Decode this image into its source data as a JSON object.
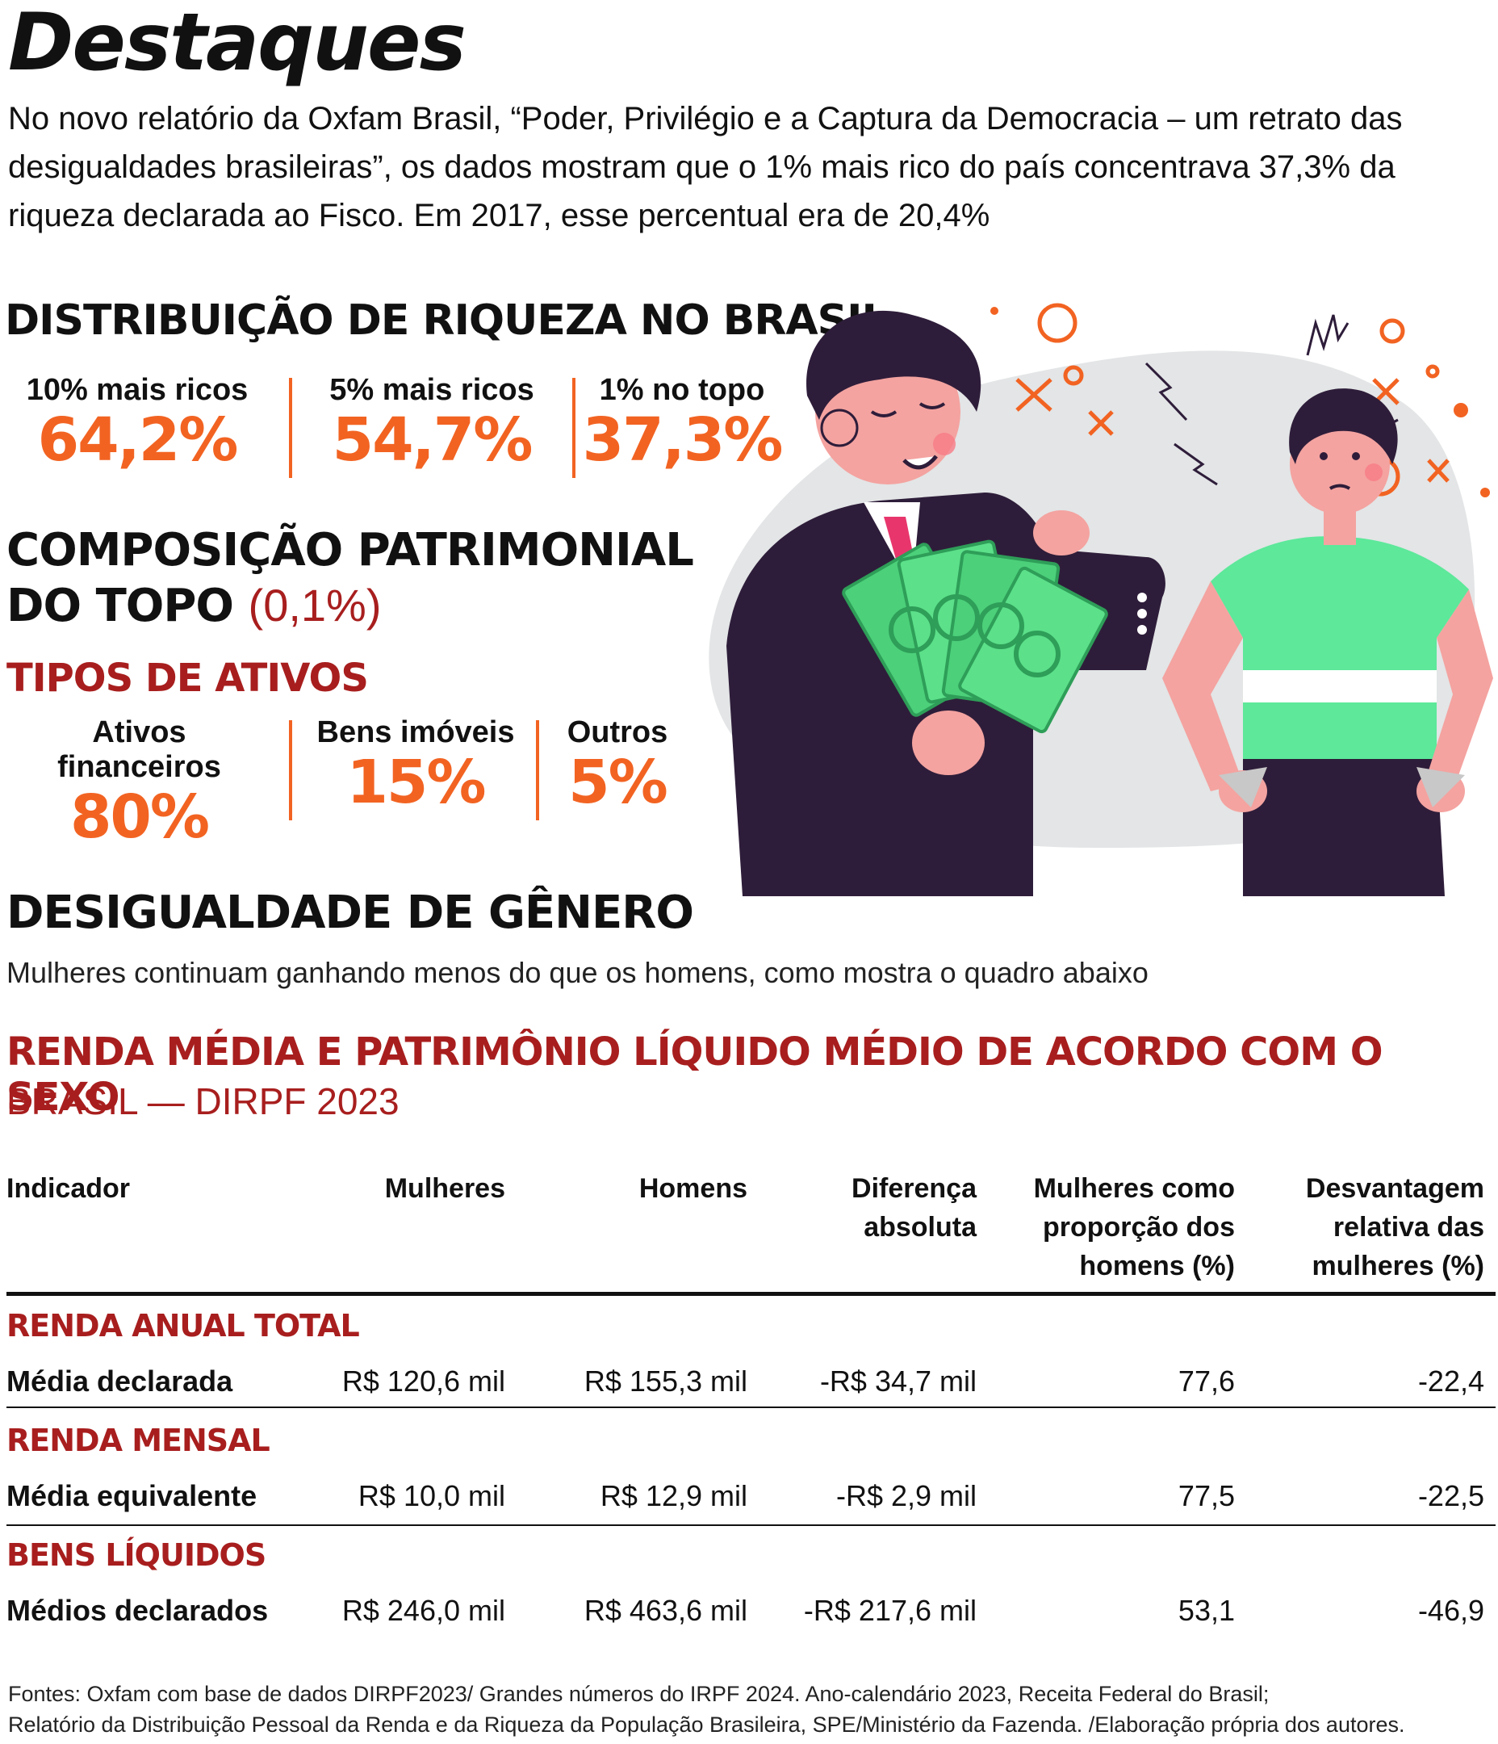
{
  "title": "Destaques",
  "intro": "No novo relatório da Oxfam Brasil, “Poder, Privilégio e a Captura da Democracia – um retrato das desigualdades brasileiras”, os dados mostram que o 1% mais rico do país concentrava 37,3% da riqueza declarada ao Fisco. Em 2017, esse percentual era de 20,4%",
  "distribution": {
    "title": "DISTRIBUIÇÃO DE RIQUEZA NO BRASIL",
    "items": [
      {
        "label": "10% mais ricos",
        "value": "64,2%"
      },
      {
        "label": "5% mais ricos",
        "value": "54,7%"
      },
      {
        "label": "1% no topo",
        "value": "37,3%"
      }
    ]
  },
  "composition": {
    "title_line1": "COMPOSIÇÃO PATRIMONIAL",
    "title_line2": "DO TOPO",
    "title_accent": "(0,1%)",
    "types_title": "TIPOS DE ATIVOS",
    "items": [
      {
        "label": "Ativos financeiros",
        "value": "80%"
      },
      {
        "label": "Bens imóveis",
        "value": "15%"
      },
      {
        "label": "Outros",
        "value": "5%"
      }
    ]
  },
  "gender": {
    "title": "DESIGUALDADE DE GÊNERO",
    "subtitle": "Mulheres continuam ganhando menos do que os homens, como mostra o quadro abaixo"
  },
  "table": {
    "title": "RENDA MÉDIA E PATRIMÔNIO LÍQUIDO MÉDIO DE ACORDO COM O SEXO",
    "subtitle": "BRASIL — DIRPF 2023",
    "headers": [
      {
        "l1": "Indicador",
        "l2": "",
        "l3": ""
      },
      {
        "l1": "Mulheres",
        "l2": "",
        "l3": ""
      },
      {
        "l1": "Homens",
        "l2": "",
        "l3": ""
      },
      {
        "l1": "Diferença",
        "l2": "absoluta",
        "l3": ""
      },
      {
        "l1": "Mulheres como",
        "l2": "proporção dos",
        "l3": "homens (%)"
      },
      {
        "l1": "Desvantagem",
        "l2": "relativa das",
        "l3": "mulheres (%)"
      }
    ],
    "groups": [
      {
        "group": "RENDA ANUAL TOTAL",
        "label": "Média declarada",
        "mulheres": "R$ 120,6 mil",
        "homens": "R$ 155,3 mil",
        "diferenca": "-R$ 34,7 mil",
        "proporcao": "77,6",
        "desvantagem": "-22,4"
      },
      {
        "group": "RENDA MENSAL",
        "label": "Média equivalente",
        "mulheres": "R$ 10,0 mil",
        "homens": "R$ 12,9 mil",
        "diferenca": "-R$ 2,9 mil",
        "proporcao": "77,5",
        "desvantagem": "-22,5"
      },
      {
        "group": "BENS LÍQUIDOS",
        "label": "Médios declarados",
        "mulheres": "R$ 246,0 mil",
        "homens": "R$ 463,6 mil",
        "diferenca": "-R$ 217,6 mil",
        "proporcao": "53,1",
        "desvantagem": "-46,9"
      }
    ]
  },
  "sources_line1": "Fontes: Oxfam com base de dados DIRPF2023/ Grandes números do IRPF 2024. Ano-calendário 2023, Receita Federal do Brasil;",
  "sources_line2": "Relatório da Distribuição Pessoal da Renda e da Riqueza da População Brasileira, SPE/Ministério da Fazenda. /Elaboração própria dos autores.",
  "colors": {
    "accent_orange": "#f26322",
    "accent_red": "#a81e1e",
    "suit": "#2e1d3a",
    "shirt_green": "#5de89a",
    "money_green": "#4cd07a",
    "skin": "#f4a3a0"
  },
  "illustration": {
    "subject": "rich-man-holding-money-and-poor-man-with-empty-pockets-illustration"
  }
}
